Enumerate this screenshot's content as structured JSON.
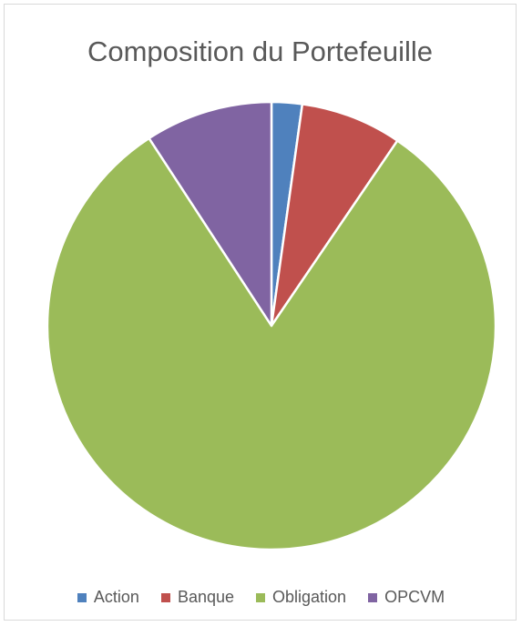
{
  "chart_data": {
    "type": "pie",
    "title": "Composition du Portefeuille",
    "categories": [
      "Action",
      "Banque",
      "Obligation",
      "OPCVM"
    ],
    "values": [
      2.2,
      7.3,
      81.3,
      9.2
    ],
    "colors": [
      "#4f81bd",
      "#c0504d",
      "#9bbb59",
      "#8064a2"
    ],
    "legend_position": "bottom"
  }
}
